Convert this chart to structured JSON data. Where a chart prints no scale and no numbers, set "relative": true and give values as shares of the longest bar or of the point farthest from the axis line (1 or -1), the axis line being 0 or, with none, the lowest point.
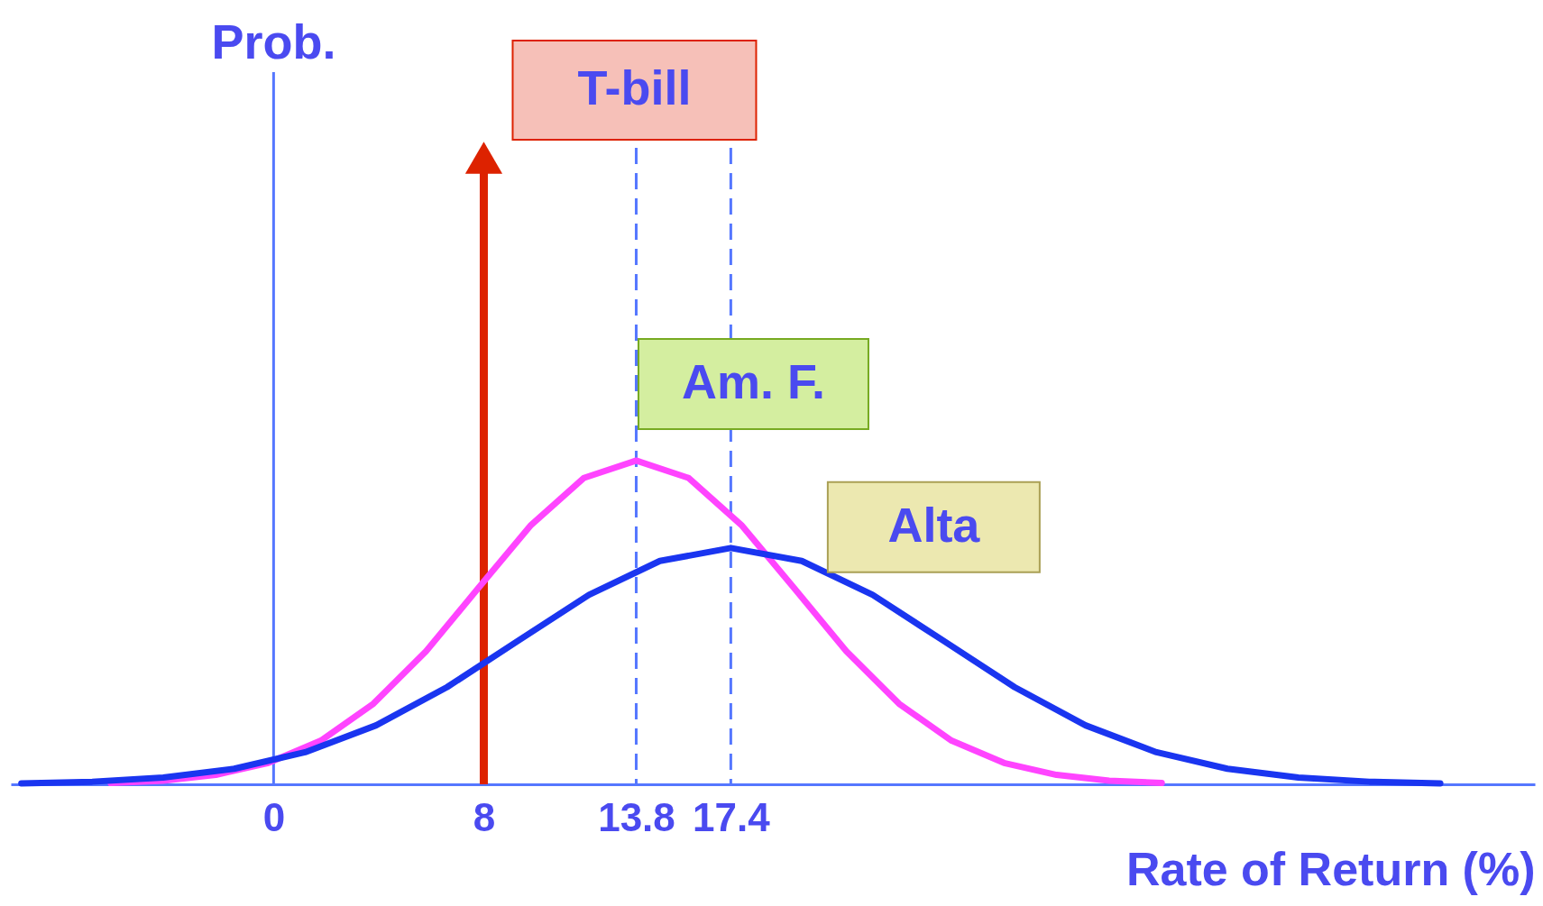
{
  "chart_data": {
    "type": "line",
    "relative": true,
    "annotations": [
      "Prob."
    ],
    "xlabel": "Rate of Return (%)",
    "xlim": [
      -10,
      48
    ],
    "xticks": [
      0,
      8,
      13.8,
      17.4
    ],
    "series": [
      {
        "name": "Am. F.",
        "color": "#ff44ff",
        "x": [
          -6.2,
          -4.2,
          -2.2,
          -0.2,
          1.8,
          3.8,
          5.8,
          7.8,
          9.8,
          11.8,
          13.8,
          15.8,
          17.8,
          19.8,
          21.8,
          23.8,
          25.8,
          27.8,
          29.8,
          31.8,
          33.8
        ],
        "values": [
          0.004,
          0.011,
          0.029,
          0.066,
          0.135,
          0.249,
          0.411,
          0.607,
          0.801,
          0.946,
          1,
          0.946,
          0.801,
          0.607,
          0.411,
          0.249,
          0.135,
          0.066,
          0.029,
          0.011,
          0.004
        ]
      },
      {
        "name": "Alta",
        "color": "#1a35f0",
        "x": [
          -9.6,
          -6.9,
          -4.2,
          -1.5,
          1.2,
          3.9,
          6.6,
          9.3,
          12.0,
          14.7,
          17.4,
          20.1,
          22.8,
          25.5,
          28.2,
          30.9,
          33.6,
          36.3,
          39.0,
          41.7,
          44.4
        ],
        "values": [
          0.003,
          0.008,
          0.021,
          0.048,
          0.099,
          0.182,
          0.3,
          0.443,
          0.585,
          0.69,
          0.73,
          0.69,
          0.585,
          0.443,
          0.3,
          0.182,
          0.099,
          0.048,
          0.021,
          0.008,
          0.003
        ]
      }
    ],
    "ref_lines": [
      {
        "axis": "x",
        "value": 0,
        "color": "#5577ff",
        "line_style": "solid"
      },
      {
        "axis": "x",
        "value": 13.8,
        "color": "#5577ff",
        "line_style": "dashed"
      },
      {
        "axis": "x",
        "value": 17.4,
        "color": "#5577ff",
        "line_style": "dashed"
      },
      {
        "axis": "x",
        "value": 8,
        "label": "T-bill",
        "color": "#dd2200",
        "line_style": "solid"
      }
    ],
    "marker": "none",
    "line_style": "solid",
    "grid": false,
    "legend": false
  }
}
